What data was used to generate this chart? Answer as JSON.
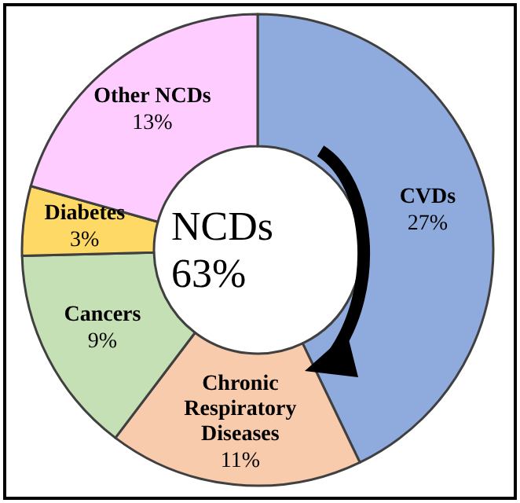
{
  "chart_data": {
    "type": "donut",
    "title": "NCDs 63%",
    "categories": [
      "CVDs",
      "Chronic Respiratory Diseases",
      "Cancers",
      "Diabetes",
      "Other NCDs"
    ],
    "values": [
      27,
      11,
      9,
      3,
      13
    ],
    "value_labels": [
      "27%",
      "11%",
      "9%",
      "3%",
      "13%"
    ],
    "colors": [
      "#8faadc",
      "#f8cbad",
      "#c5e0b4",
      "#ffd966",
      "#ffccff"
    ],
    "legend": false
  }
}
